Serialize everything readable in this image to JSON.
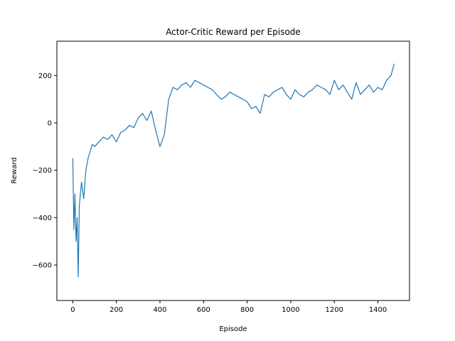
{
  "chart_data": {
    "type": "line",
    "title": "Actor-Critic Reward per Episode",
    "xlabel": "Episode",
    "ylabel": "Reward",
    "xlim": [
      -73,
      1545
    ],
    "ylim": [
      -750,
      345
    ],
    "xticks": [
      0,
      200,
      400,
      600,
      800,
      1000,
      1200,
      1400
    ],
    "yticks": [
      -600,
      -400,
      -200,
      0,
      200
    ],
    "grid": false,
    "series": [
      {
        "color": "#1f77b4",
        "x": [
          0,
          5,
          10,
          15,
          20,
          25,
          30,
          40,
          50,
          60,
          70,
          80,
          90,
          100,
          120,
          140,
          160,
          180,
          200,
          220,
          240,
          260,
          280,
          300,
          320,
          340,
          360,
          380,
          400,
          420,
          440,
          460,
          480,
          500,
          520,
          540,
          560,
          580,
          600,
          620,
          640,
          660,
          680,
          700,
          720,
          740,
          760,
          780,
          800,
          820,
          840,
          860,
          880,
          900,
          920,
          940,
          960,
          980,
          1000,
          1020,
          1040,
          1060,
          1080,
          1100,
          1120,
          1140,
          1160,
          1180,
          1200,
          1220,
          1240,
          1260,
          1280,
          1300,
          1320,
          1340,
          1360,
          1380,
          1400,
          1420,
          1440,
          1460,
          1475
        ],
        "y": [
          -150,
          -450,
          -300,
          -500,
          -400,
          -650,
          -350,
          -250,
          -320,
          -200,
          -150,
          -120,
          -90,
          -100,
          -80,
          -60,
          -70,
          -50,
          -80,
          -40,
          -30,
          -10,
          -20,
          20,
          40,
          10,
          50,
          -30,
          -100,
          -50,
          100,
          150,
          140,
          160,
          170,
          150,
          180,
          170,
          160,
          150,
          140,
          120,
          100,
          110,
          130,
          120,
          110,
          100,
          90,
          60,
          70,
          40,
          120,
          110,
          130,
          140,
          150,
          120,
          100,
          140,
          120,
          110,
          130,
          140,
          160,
          150,
          140,
          120,
          180,
          140,
          160,
          130,
          100,
          170,
          120,
          140,
          160,
          130,
          150,
          140,
          180,
          200,
          250
        ]
      }
    ]
  }
}
